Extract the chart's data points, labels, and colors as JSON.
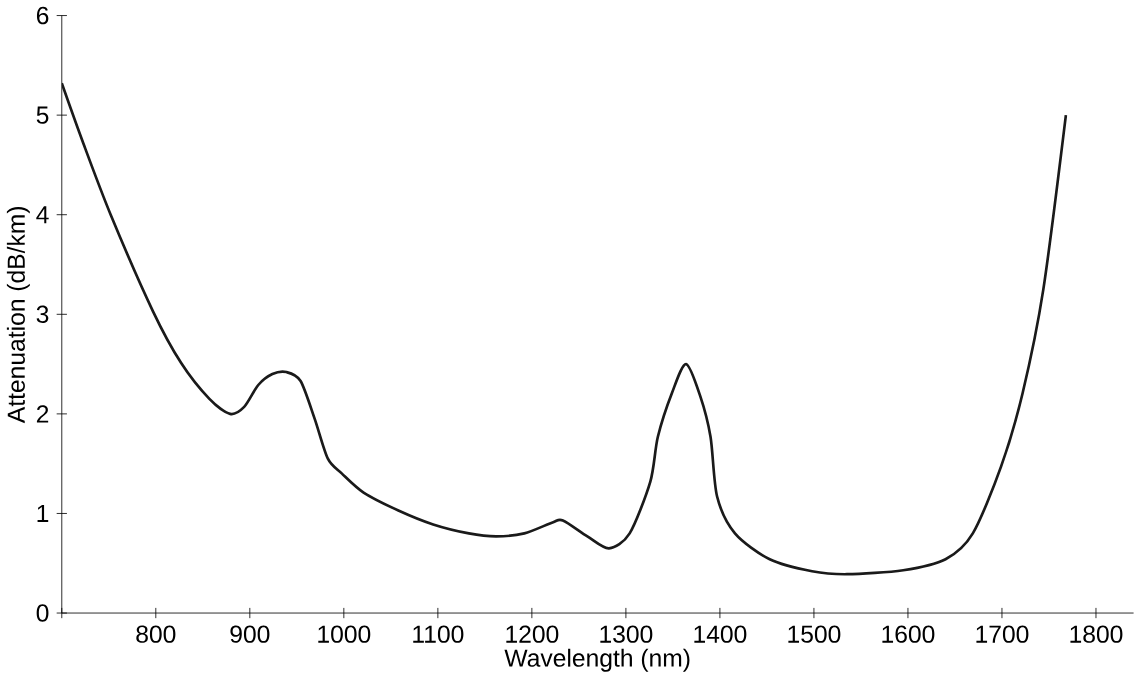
{
  "chart_data": {
    "type": "line",
    "xlabel": "Wavelength (nm)",
    "ylabel": "Attenuation (dB/km)",
    "x": [
      700,
      722,
      752,
      797,
      827,
      857,
      879,
      894,
      909,
      924,
      939,
      954,
      969,
      983,
      998,
      1021,
      1058,
      1095,
      1133,
      1162,
      1192,
      1222,
      1233,
      1259,
      1282,
      1304,
      1326,
      1334,
      1349,
      1364,
      1379,
      1390,
      1397,
      1416,
      1453,
      1498,
      1535,
      1595,
      1640,
      1669,
      1699,
      1722,
      1744,
      1768
    ],
    "series": [
      {
        "color": "#1a1a1a",
        "values": [
          5.32,
          4.74,
          4.0,
          3.03,
          2.51,
          2.15,
          2.0,
          2.07,
          2.29,
          2.4,
          2.42,
          2.33,
          1.95,
          1.55,
          1.4,
          1.21,
          1.03,
          0.89,
          0.8,
          0.77,
          0.8,
          0.91,
          0.93,
          0.77,
          0.65,
          0.8,
          1.32,
          1.77,
          2.21,
          2.5,
          2.18,
          1.77,
          1.17,
          0.8,
          0.54,
          0.42,
          0.39,
          0.43,
          0.54,
          0.8,
          1.47,
          2.21,
          3.25,
          5.0
        ]
      }
    ],
    "xlim": [
      700,
      1840
    ],
    "ylim": [
      0,
      6
    ],
    "xticks": [
      {
        "value": 700,
        "label": null
      },
      800,
      900,
      1000,
      1100,
      1200,
      1300,
      1400,
      1500,
      1600,
      1700,
      1800
    ],
    "yticks": [
      0,
      1,
      2,
      3,
      4,
      5,
      6
    ],
    "grid": false,
    "marker": "none",
    "line_style": "solid"
  }
}
